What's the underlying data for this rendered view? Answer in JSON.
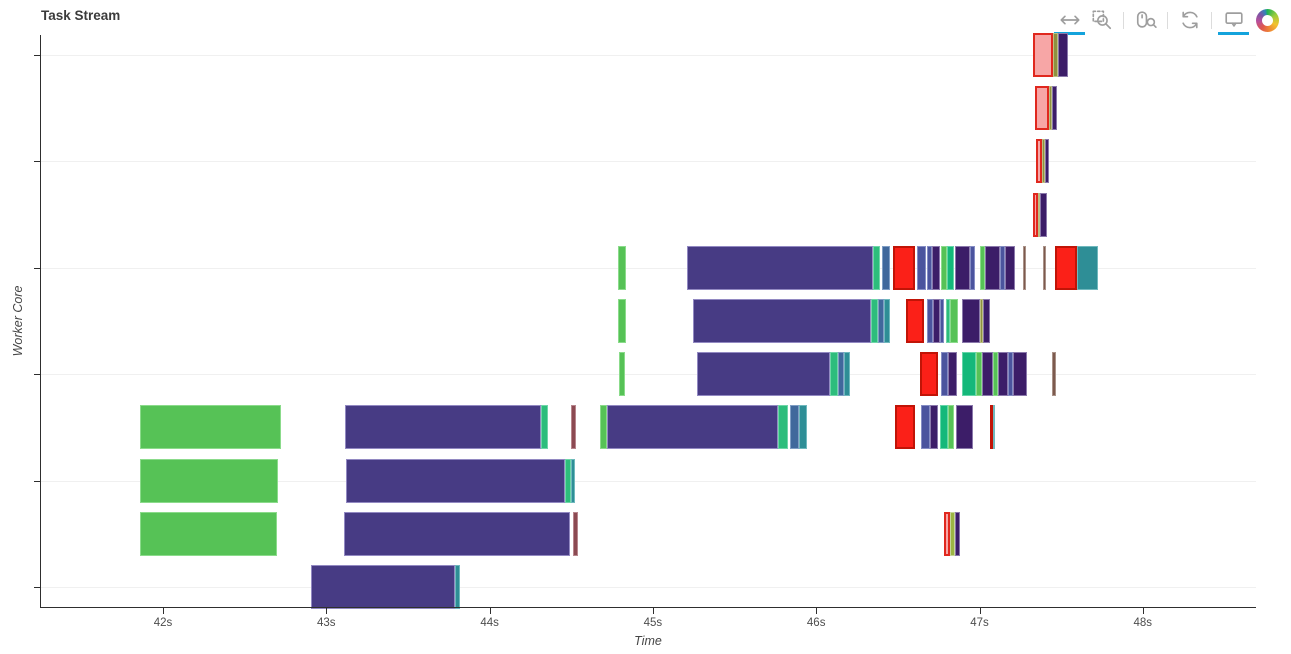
{
  "toolbar": {
    "active_color": "#14a3dc",
    "logo_label": "Bokeh",
    "tools": [
      {
        "name": "pan",
        "label": "Pan",
        "active": true
      },
      {
        "name": "box-zoom",
        "label": "Box Zoom",
        "active": false
      },
      {
        "name": "wheel-zoom",
        "label": "Wheel Zoom",
        "active": false
      },
      {
        "name": "reset",
        "label": "Reset",
        "active": false
      },
      {
        "name": "hover",
        "label": "Hover",
        "active": true
      }
    ]
  },
  "chart_data": {
    "type": "task-stream-gantt",
    "title": "Task Stream",
    "xlabel": "Time",
    "ylabel": "Worker Core",
    "xlim": [
      41.25,
      48.69
    ],
    "rows": 11,
    "grid": "horizontal-only",
    "legend": "none",
    "x_ticks": [
      {
        "t": 42,
        "label": "42s"
      },
      {
        "t": 43,
        "label": "43s"
      },
      {
        "t": 44,
        "label": "44s"
      },
      {
        "t": 45,
        "label": "45s"
      },
      {
        "t": 46,
        "label": "46s"
      },
      {
        "t": 47,
        "label": "47s"
      },
      {
        "t": 48,
        "label": "48s"
      }
    ],
    "y_tick_rows": [
      0,
      2,
      4,
      6,
      8,
      10
    ],
    "palette": {
      "green": {
        "fill": "#56c256",
        "edge": "#8bdb8b"
      },
      "purple": {
        "fill": "#473b84",
        "edge": "#9289c2"
      },
      "springgreen": {
        "fill": "#2dbd7c",
        "edge": "#6fd6a8"
      },
      "steelblue": {
        "fill": "#40689c",
        "edge": "#7f9dc4"
      },
      "teal": {
        "fill": "#2e8e96",
        "edge": "#6fb8bd"
      },
      "red": {
        "fill": "#fb2018",
        "edge": "#c11407"
      },
      "slate": {
        "fill": "#4b549e",
        "edge": "#858dc4"
      },
      "darkviolet": {
        "fill": "#3c1d68",
        "edge": "#8a78ab"
      },
      "emerald": {
        "fill": "#14b87a",
        "edge": "#63d5a8"
      },
      "olive": {
        "fill": "#8e9140",
        "edge": "#bcbe82"
      },
      "brown": {
        "fill": "#7c5a4e",
        "edge": "#aa9288"
      },
      "maroon": {
        "fill": "#8c4a52",
        "edge": "#b8868d"
      },
      "salmon": {
        "fill": "#f7a6a6",
        "edge": "#e0281e"
      },
      "yellowgreen": {
        "fill": "#9cb544",
        "edge": "#c6d698"
      }
    },
    "tasks": [
      [
        0,
        47.328,
        47.45,
        "salmon"
      ],
      [
        0,
        47.45,
        47.481,
        "olive"
      ],
      [
        0,
        47.481,
        47.542,
        "darkviolet"
      ],
      [
        1,
        47.34,
        47.426,
        "salmon"
      ],
      [
        1,
        47.426,
        47.444,
        "olive"
      ],
      [
        1,
        47.444,
        47.475,
        "darkviolet"
      ],
      [
        2,
        47.346,
        47.383,
        "salmon"
      ],
      [
        2,
        47.383,
        47.401,
        "olive"
      ],
      [
        2,
        47.401,
        47.426,
        "darkviolet"
      ],
      [
        3,
        47.328,
        47.358,
        "salmon"
      ],
      [
        3,
        47.358,
        47.371,
        "olive"
      ],
      [
        3,
        47.371,
        47.414,
        "darkviolet"
      ],
      [
        4,
        44.786,
        44.835,
        "green"
      ],
      [
        4,
        45.209,
        46.348,
        "purple"
      ],
      [
        4,
        46.348,
        46.391,
        "springgreen"
      ],
      [
        4,
        46.403,
        46.452,
        "steelblue"
      ],
      [
        4,
        46.47,
        46.605,
        "red"
      ],
      [
        4,
        46.617,
        46.672,
        "slate"
      ],
      [
        4,
        46.678,
        46.709,
        "slate"
      ],
      [
        4,
        46.709,
        46.758,
        "darkviolet"
      ],
      [
        4,
        46.764,
        46.8,
        "green"
      ],
      [
        4,
        46.8,
        46.843,
        "emerald"
      ],
      [
        4,
        46.849,
        46.941,
        "darkviolet"
      ],
      [
        4,
        46.941,
        46.972,
        "slate"
      ],
      [
        4,
        47.003,
        47.033,
        "green"
      ],
      [
        4,
        47.033,
        47.125,
        "darkviolet"
      ],
      [
        4,
        47.125,
        47.156,
        "slate"
      ],
      [
        4,
        47.156,
        47.217,
        "darkviolet"
      ],
      [
        4,
        47.266,
        47.284,
        "brown"
      ],
      [
        4,
        47.389,
        47.407,
        "brown"
      ],
      [
        4,
        47.462,
        47.597,
        "red"
      ],
      [
        4,
        47.597,
        47.725,
        "teal"
      ],
      [
        5,
        44.786,
        44.835,
        "green"
      ],
      [
        5,
        45.245,
        46.335,
        "purple"
      ],
      [
        5,
        46.335,
        46.378,
        "springgreen"
      ],
      [
        5,
        46.378,
        46.415,
        "steelblue"
      ],
      [
        5,
        46.415,
        46.452,
        "teal"
      ],
      [
        5,
        46.55,
        46.66,
        "red"
      ],
      [
        5,
        46.678,
        46.715,
        "slate"
      ],
      [
        5,
        46.715,
        46.758,
        "darkviolet"
      ],
      [
        5,
        46.758,
        46.782,
        "slate"
      ],
      [
        5,
        46.794,
        46.819,
        "springgreen"
      ],
      [
        5,
        46.819,
        46.868,
        "green"
      ],
      [
        5,
        46.892,
        47.003,
        "darkviolet"
      ],
      [
        5,
        47.003,
        47.021,
        "olive"
      ],
      [
        5,
        47.021,
        47.064,
        "darkviolet"
      ],
      [
        6,
        44.792,
        44.829,
        "green"
      ],
      [
        6,
        45.27,
        46.084,
        "purple"
      ],
      [
        6,
        46.084,
        46.133,
        "springgreen"
      ],
      [
        6,
        46.133,
        46.17,
        "steelblue"
      ],
      [
        6,
        46.17,
        46.207,
        "teal"
      ],
      [
        6,
        46.635,
        46.746,
        "red"
      ],
      [
        6,
        46.764,
        46.807,
        "slate"
      ],
      [
        6,
        46.807,
        46.862,
        "darkviolet"
      ],
      [
        6,
        46.892,
        46.978,
        "emerald"
      ],
      [
        6,
        46.978,
        47.015,
        "green"
      ],
      [
        6,
        47.015,
        47.082,
        "darkviolet"
      ],
      [
        6,
        47.082,
        47.113,
        "green"
      ],
      [
        6,
        47.113,
        47.174,
        "darkviolet"
      ],
      [
        6,
        47.174,
        47.205,
        "slate"
      ],
      [
        6,
        47.205,
        47.29,
        "darkviolet"
      ],
      [
        6,
        47.443,
        47.468,
        "brown"
      ],
      [
        7,
        41.859,
        42.723,
        "green"
      ],
      [
        7,
        43.114,
        44.315,
        "purple"
      ],
      [
        7,
        44.315,
        44.358,
        "springgreen"
      ],
      [
        7,
        44.498,
        44.529,
        "maroon"
      ],
      [
        7,
        44.676,
        44.719,
        "green"
      ],
      [
        7,
        44.719,
        45.766,
        "purple"
      ],
      [
        7,
        45.766,
        45.827,
        "springgreen"
      ],
      [
        7,
        45.84,
        45.895,
        "steelblue"
      ],
      [
        7,
        45.895,
        45.944,
        "teal"
      ],
      [
        7,
        46.482,
        46.605,
        "red"
      ],
      [
        7,
        46.642,
        46.697,
        "slate"
      ],
      [
        7,
        46.697,
        46.746,
        "darkviolet"
      ],
      [
        7,
        46.758,
        46.807,
        "emerald"
      ],
      [
        7,
        46.807,
        46.843,
        "green"
      ],
      [
        7,
        46.856,
        46.96,
        "darkviolet"
      ],
      [
        7,
        47.064,
        47.082,
        "red"
      ],
      [
        7,
        47.082,
        47.095,
        "teal"
      ],
      [
        8,
        41.859,
        42.704,
        "green"
      ],
      [
        8,
        43.121,
        44.462,
        "purple"
      ],
      [
        8,
        44.462,
        44.498,
        "springgreen"
      ],
      [
        8,
        44.498,
        44.523,
        "teal"
      ],
      [
        9,
        41.859,
        42.698,
        "green"
      ],
      [
        9,
        43.108,
        44.492,
        "purple"
      ],
      [
        9,
        44.51,
        44.541,
        "maroon"
      ],
      [
        9,
        46.782,
        46.819,
        "salmon"
      ],
      [
        9,
        46.819,
        46.85,
        "yellowgreen"
      ],
      [
        9,
        46.85,
        46.88,
        "darkviolet"
      ],
      [
        10,
        42.906,
        43.788,
        "purple"
      ],
      [
        10,
        43.788,
        43.819,
        "teal"
      ]
    ]
  }
}
